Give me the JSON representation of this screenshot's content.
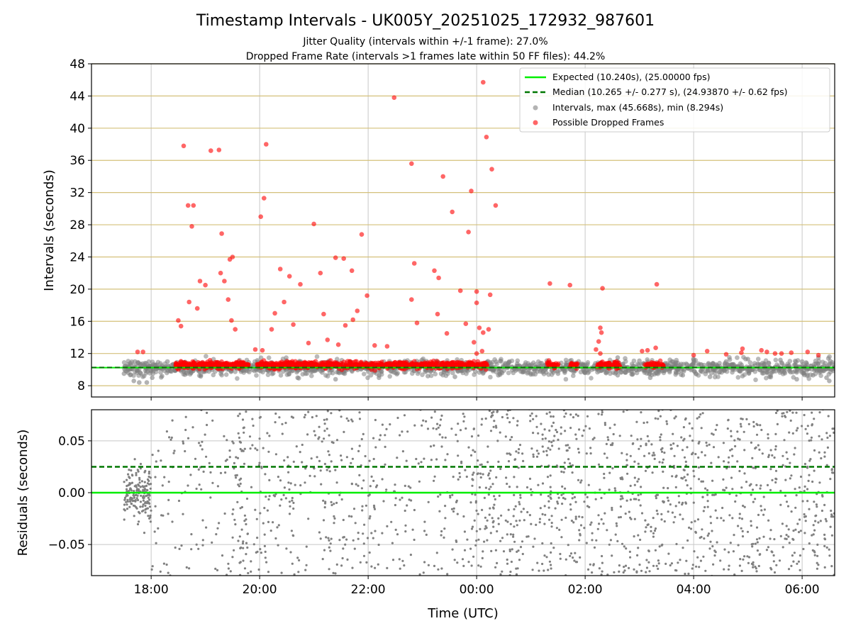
{
  "figure": {
    "title": "Timestamp Intervals - UK005Y_20251025_172932_987601",
    "subtitle_1": "Jitter Quality (intervals within +/-1 frame): 27.0%",
    "subtitle_2": "Dropped Frame Rate (intervals >1 frames late within 50 FF files): 44.2%"
  },
  "colors": {
    "expected": "#00ee00",
    "median": "#007700",
    "intervals": "#808080",
    "dropped": "#ff0000",
    "hgrid_top": "#d4c07a",
    "grid": "#c8c8c8"
  },
  "chart_data": [
    {
      "type": "scatter",
      "ylabel": "Intervals (seconds)",
      "xlabel": "",
      "grid": true,
      "legend": "top-right",
      "x_unit": "hours relative to 00:00 UTC",
      "xlim": [
        -7.1,
        6.6
      ],
      "ylim": [
        6.6,
        48
      ],
      "yticks": [
        8,
        12,
        16,
        20,
        24,
        28,
        32,
        36,
        40,
        44,
        48
      ],
      "x_tick_values": [
        -6,
        -4,
        -2,
        0,
        2,
        4,
        6
      ],
      "expected_interval": 10.24,
      "median_interval": 10.265,
      "legend_entries": {
        "expected": "Expected (10.240s), (25.00000 fps)",
        "median": "Median (10.265 +/- 0.277 s), (24.93870 +/- 0.62 fps)",
        "intervals": "Intervals, max (45.668s), min (8.294s)",
        "dropped": "Possible Dropped Frames"
      },
      "series": [
        {
          "name": "Possible Dropped Frames",
          "points": [
            [
              -6.25,
              12.2
            ],
            [
              -6.15,
              12.2
            ],
            [
              -5.4,
              37.8
            ],
            [
              -5.32,
              30.4
            ],
            [
              -5.22,
              30.4
            ],
            [
              -5.25,
              27.8
            ],
            [
              -5.5,
              16.1
            ],
            [
              -5.45,
              15.4
            ],
            [
              -5.3,
              18.4
            ],
            [
              -5.15,
              17.6
            ],
            [
              -5.1,
              21.0
            ],
            [
              -5.0,
              20.5
            ],
            [
              -4.9,
              37.2
            ],
            [
              -4.75,
              37.3
            ],
            [
              -4.7,
              26.9
            ],
            [
              -4.72,
              22.0
            ],
            [
              -4.65,
              21.0
            ],
            [
              -4.55,
              23.7
            ],
            [
              -4.5,
              24.0
            ],
            [
              -4.58,
              18.7
            ],
            [
              -4.52,
              16.1
            ],
            [
              -4.45,
              15.0
            ],
            [
              -3.98,
              29.0
            ],
            [
              -3.92,
              31.3
            ],
            [
              -3.88,
              38.0
            ],
            [
              -3.78,
              15.0
            ],
            [
              -3.72,
              17.0
            ],
            [
              -3.62,
              22.5
            ],
            [
              -3.45,
              21.6
            ],
            [
              -3.55,
              18.4
            ],
            [
              -3.38,
              15.6
            ],
            [
              -3.25,
              20.6
            ],
            [
              -3.0,
              28.1
            ],
            [
              -2.88,
              22.0
            ],
            [
              -2.82,
              16.9
            ],
            [
              -2.6,
              23.9
            ],
            [
              -2.45,
              23.8
            ],
            [
              -2.3,
              22.3
            ],
            [
              -2.42,
              15.5
            ],
            [
              -2.55,
              13.1
            ],
            [
              -2.12,
              26.8
            ],
            [
              -2.02,
              19.2
            ],
            [
              -1.52,
              43.8
            ],
            [
              -2.2,
              17.3
            ],
            [
              -1.88,
              13.0
            ],
            [
              -1.65,
              12.9
            ],
            [
              -1.2,
              35.6
            ],
            [
              -1.15,
              23.2
            ],
            [
              -1.1,
              15.8
            ],
            [
              -1.2,
              18.7
            ],
            [
              -0.78,
              22.3
            ],
            [
              -0.7,
              21.4
            ],
            [
              -0.62,
              34.0
            ],
            [
              -0.45,
              29.6
            ],
            [
              -0.3,
              19.8
            ],
            [
              -0.2,
              15.7
            ],
            [
              -0.1,
              32.2
            ],
            [
              -0.15,
              27.1
            ],
            [
              -0.72,
              16.9
            ],
            [
              -0.55,
              14.5
            ],
            [
              0.0,
              19.7
            ],
            [
              0.12,
              45.7
            ],
            [
              0.18,
              38.9
            ],
            [
              0.28,
              34.9
            ],
            [
              0.35,
              30.4
            ],
            [
              0.25,
              19.3
            ],
            [
              0.05,
              15.2
            ],
            [
              0.22,
              15.0
            ],
            [
              0.12,
              14.6
            ],
            [
              -0.05,
              13.4
            ],
            [
              0.1,
              12.3
            ],
            [
              0.0,
              18.3
            ],
            [
              0.0,
              12.0
            ],
            [
              1.35,
              20.7
            ],
            [
              1.72,
              20.5
            ],
            [
              2.32,
              20.1
            ],
            [
              2.28,
              15.2
            ],
            [
              2.3,
              14.6
            ],
            [
              2.25,
              13.5
            ],
            [
              2.2,
              12.5
            ],
            [
              2.28,
              12.0
            ],
            [
              3.32,
              20.6
            ],
            [
              3.05,
              12.3
            ],
            [
              3.15,
              12.4
            ],
            [
              3.3,
              12.7
            ],
            [
              4.0,
              11.8
            ],
            [
              4.25,
              12.3
            ],
            [
              4.6,
              11.9
            ],
            [
              4.9,
              12.6
            ],
            [
              4.88,
              12.1
            ],
            [
              5.25,
              12.4
            ],
            [
              5.35,
              12.2
            ],
            [
              5.5,
              12.0
            ],
            [
              5.62,
              12.0
            ],
            [
              5.8,
              12.1
            ],
            [
              6.1,
              12.2
            ],
            [
              6.3,
              11.8
            ],
            [
              -3.95,
              12.4
            ],
            [
              -3.1,
              13.3
            ],
            [
              -2.75,
              13.7
            ],
            [
              -2.28,
              16.2
            ],
            [
              -4.08,
              12.5
            ]
          ]
        },
        {
          "name": "Intervals, max (45.668s), min (8.294s)",
          "points": [
            [
              -6.32,
              8.6
            ],
            [
              -6.22,
              8.4
            ],
            [
              -6.08,
              8.4
            ],
            [
              -5.98,
              9.0
            ],
            [
              -6.5,
              9.5
            ],
            [
              -6.45,
              9.8
            ],
            [
              -6.38,
              10.8
            ],
            [
              -6.3,
              11.0
            ],
            [
              -6.2,
              9.6
            ],
            [
              -6.1,
              10.3
            ],
            [
              -6.0,
              9.9
            ],
            [
              -5.9,
              10.6
            ],
            [
              -5.8,
              9.2
            ],
            [
              -5.7,
              11.0
            ],
            [
              -3.3,
              9.0
            ],
            [
              -2.6,
              8.8
            ],
            [
              -1.8,
              9.0
            ],
            [
              -0.9,
              9.2
            ],
            [
              -0.4,
              9.1
            ],
            [
              0.4,
              9.3
            ],
            [
              1.0,
              9.4
            ],
            [
              1.5,
              9.5
            ],
            [
              2.0,
              9.6
            ],
            [
              2.6,
              9.3
            ],
            [
              3.2,
              9.0
            ],
            [
              3.8,
              9.3
            ],
            [
              4.3,
              9.1
            ],
            [
              4.9,
              9.2
            ],
            [
              5.4,
              9.1
            ],
            [
              5.9,
              8.8
            ],
            [
              6.2,
              9.3
            ],
            [
              6.5,
              8.6
            ],
            [
              6.45,
              9.0
            ],
            [
              2.6,
              11.5
            ],
            [
              3.6,
              11.0
            ],
            [
              4.6,
              11.0
            ],
            [
              5.6,
              11.2
            ],
            [
              6.3,
              11.5
            ],
            [
              6.0,
              11.0
            ],
            [
              5.0,
              11.3
            ],
            [
              4.0,
              11.2
            ],
            [
              3.0,
              11.1
            ],
            [
              1.2,
              10.8
            ],
            [
              0.6,
              10.9
            ],
            [
              -0.2,
              10.9
            ],
            [
              -1.4,
              10.7
            ],
            [
              -2.8,
              10.9
            ],
            [
              -4.2,
              10.9
            ]
          ]
        }
      ]
    },
    {
      "type": "scatter",
      "ylabel": "Residuals (seconds)",
      "xlabel": "Time (UTC)",
      "grid": true,
      "xlim": [
        -7.1,
        6.6
      ],
      "ylim": [
        -0.08,
        0.08
      ],
      "yticks": [
        -0.05,
        0.0,
        0.05
      ],
      "ytick_labels": [
        "−0.05",
        "0.00",
        "0.05"
      ],
      "x_tick_values": [
        -6,
        -4,
        -2,
        0,
        2,
        4,
        6
      ],
      "x_tick_labels": [
        "18:00",
        "20:00",
        "22:00",
        "00:00",
        "02:00",
        "04:00",
        "06:00"
      ],
      "expected_residual": 0.0,
      "median_residual": 0.025,
      "residual_density": [
        [
          -6.5,
          -6.0,
          160,
          "cluster"
        ],
        [
          -6.0,
          -4.5,
          110,
          "wide"
        ],
        [
          -4.5,
          -4.2,
          70,
          "wide"
        ],
        [
          -4.2,
          -3.2,
          110,
          "wide"
        ],
        [
          -3.2,
          -0.1,
          330,
          "wide"
        ],
        [
          -0.1,
          6.6,
          1150,
          "wide"
        ]
      ]
    }
  ]
}
